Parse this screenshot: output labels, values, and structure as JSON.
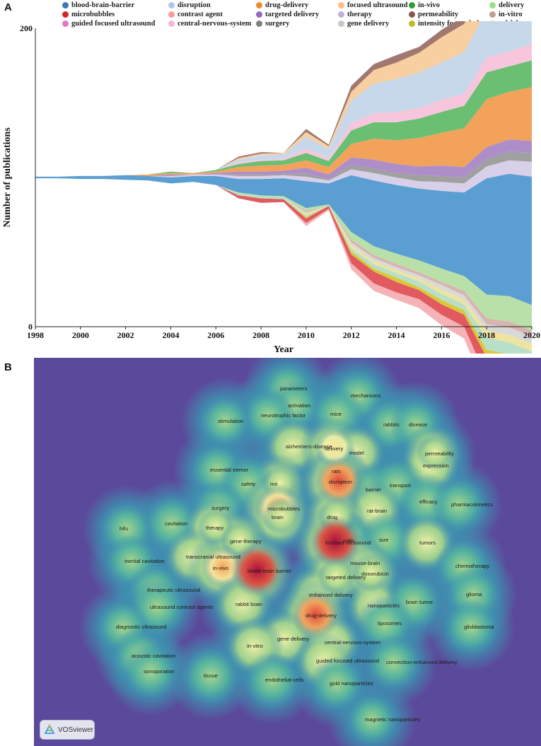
{
  "panels": {
    "a": "A",
    "b": "B"
  },
  "chart_data": [
    {
      "type": "area",
      "subtype": "streamgraph",
      "xlabel": "Year",
      "ylabel": "Number of publications",
      "xlim": [
        1998,
        2020
      ],
      "ylim": [
        0,
        200
      ],
      "y_tick_labels": [
        "200",
        "0"
      ],
      "x": [
        1998,
        1999,
        2000,
        2001,
        2002,
        2003,
        2004,
        2005,
        2006,
        2007,
        2008,
        2009,
        2010,
        2011,
        2012,
        2013,
        2014,
        2015,
        2016,
        2017,
        2018,
        2019,
        2020
      ],
      "x_tick_labels": [
        "1998",
        "2000",
        "2002",
        "2004",
        "2006",
        "2008",
        "2010",
        "2012",
        "2014",
        "2016",
        "2018",
        "2020"
      ],
      "series": [
        {
          "name": "guided focused ultrasound",
          "color": "#f5b3b8",
          "values": [
            0,
            0,
            0,
            0,
            0,
            0,
            0,
            0,
            0,
            0,
            0,
            0,
            2,
            1,
            4,
            5,
            5,
            6,
            7,
            8,
            10,
            10,
            11
          ]
        },
        {
          "name": "contrast agent",
          "color": "#e05a60",
          "values": [
            0,
            0,
            0,
            0,
            0,
            0,
            0,
            0,
            0,
            2,
            3,
            2,
            3,
            2,
            6,
            8,
            7,
            6,
            7,
            8,
            14,
            16,
            16
          ]
        },
        {
          "name": "intensity focused ultrasound",
          "color": "#d9c83a",
          "values": [
            0,
            0,
            0,
            0,
            0,
            0,
            0,
            0,
            0,
            0,
            0,
            0,
            1,
            0,
            2,
            2,
            3,
            2,
            3,
            3,
            5,
            6,
            6
          ]
        },
        {
          "name": "microbubbles",
          "color": "#b8e0c8",
          "values": [
            0,
            0,
            0,
            0,
            0,
            0,
            0,
            0,
            0,
            1,
            1,
            1,
            1,
            0,
            2,
            3,
            3,
            4,
            4,
            4,
            8,
            8,
            8
          ]
        },
        {
          "name": "model",
          "color": "#efe3a0",
          "values": [
            0,
            0,
            0,
            0,
            0,
            0,
            0,
            0,
            0,
            0,
            0,
            0,
            1,
            0,
            2,
            2,
            2,
            2,
            3,
            3,
            5,
            5,
            5
          ]
        },
        {
          "name": "gene delivery",
          "color": "#d9d9d9",
          "values": [
            0,
            0,
            0,
            0,
            0,
            0,
            0,
            0,
            0,
            0,
            0,
            0,
            1,
            0,
            2,
            2,
            2,
            2,
            3,
            3,
            4,
            5,
            5
          ]
        },
        {
          "name": "in-vitro",
          "color": "#d8b4b0",
          "values": [
            0,
            0,
            0,
            0,
            0,
            0,
            0,
            0,
            0,
            0,
            0,
            0,
            1,
            0,
            2,
            2,
            2,
            2,
            2,
            3,
            4,
            4,
            4
          ]
        },
        {
          "name": "delivery",
          "color": "#b8e0a8",
          "values": [
            0,
            0,
            0,
            0,
            0,
            0,
            0,
            0,
            0,
            1,
            1,
            1,
            2,
            1,
            5,
            6,
            7,
            8,
            9,
            10,
            16,
            17,
            17
          ]
        },
        {
          "name": "blood-brain-barrier",
          "color": "#5a9ed2",
          "values": [
            1,
            1,
            2,
            2,
            3,
            3,
            4,
            4,
            6,
            9,
            11,
            12,
            18,
            14,
            38,
            44,
            46,
            48,
            52,
            56,
            78,
            82,
            86
          ]
        },
        {
          "name": "therapy",
          "color": "#d8cfe8",
          "values": [
            0,
            0,
            0,
            0,
            0,
            0,
            1,
            1,
            1,
            2,
            2,
            2,
            3,
            2,
            4,
            5,
            5,
            5,
            6,
            6,
            8,
            9,
            10
          ]
        },
        {
          "name": "surgery",
          "color": "#a0a0a0",
          "values": [
            0,
            0,
            0,
            0,
            0,
            0,
            0,
            0,
            0,
            1,
            1,
            1,
            2,
            1,
            3,
            3,
            3,
            4,
            4,
            4,
            5,
            6,
            6
          ]
        },
        {
          "name": "targeted delivery",
          "color": "#ad8ec8",
          "values": [
            0,
            0,
            0,
            0,
            0,
            0,
            1,
            0,
            1,
            2,
            2,
            2,
            4,
            3,
            5,
            6,
            6,
            6,
            7,
            7,
            8,
            8,
            8
          ]
        },
        {
          "name": "drug-delivery",
          "color": "#f3a25c",
          "values": [
            0,
            0,
            0,
            0,
            0,
            1,
            1,
            1,
            1,
            3,
            4,
            4,
            5,
            5,
            9,
            14,
            16,
            19,
            22,
            26,
            32,
            32,
            36
          ]
        },
        {
          "name": "in-vivo",
          "color": "#6abf72",
          "values": [
            0,
            0,
            0,
            0,
            0,
            0,
            1,
            0,
            1,
            2,
            3,
            3,
            5,
            4,
            9,
            11,
            12,
            13,
            14,
            15,
            18,
            17,
            18
          ]
        },
        {
          "name": "central-nervous-system",
          "color": "#f7c6dc",
          "values": [
            0,
            0,
            0,
            0,
            0,
            0,
            0,
            0,
            0,
            1,
            1,
            1,
            3,
            2,
            5,
            6,
            7,
            7,
            8,
            8,
            10,
            10,
            11
          ]
        },
        {
          "name": "disruption",
          "color": "#c6d8ea",
          "values": [
            0,
            0,
            0,
            0,
            0,
            0,
            0,
            0,
            0,
            2,
            3,
            3,
            8,
            6,
            15,
            20,
            22,
            24,
            25,
            28,
            32,
            30,
            30
          ]
        },
        {
          "name": "focused ultrasound",
          "color": "#f8cfa0",
          "values": [
            0,
            0,
            0,
            0,
            0,
            0,
            0,
            0,
            0,
            1,
            1,
            1,
            3,
            2,
            6,
            9,
            11,
            13,
            17,
            19,
            25,
            28,
            30
          ]
        },
        {
          "name": "permeability",
          "color": "#a07870",
          "values": [
            0,
            0,
            0,
            0,
            0,
            0,
            0,
            0,
            0,
            1,
            1,
            0,
            2,
            1,
            4,
            4,
            5,
            4,
            5,
            5,
            7,
            8,
            8
          ]
        }
      ],
      "legend": [
        {
          "label": "blood-brain-barrier",
          "color": "#3d78b5"
        },
        {
          "label": "disruption",
          "color": "#aec7e8"
        },
        {
          "label": "drug-delivery",
          "color": "#f28a2c"
        },
        {
          "label": "focused ultrasound",
          "color": "#fdbf84"
        },
        {
          "label": "in-vivo",
          "color": "#2ca02c"
        },
        {
          "label": "delivery",
          "color": "#98df8a"
        },
        {
          "label": "microbubbles",
          "color": "#d62728"
        },
        {
          "label": "contrast agent",
          "color": "#ff9896"
        },
        {
          "label": "targeted delivery",
          "color": "#9467bd"
        },
        {
          "label": "therapy",
          "color": "#c5b0d5"
        },
        {
          "label": "permeability",
          "color": "#8c564b"
        },
        {
          "label": "in-vitro",
          "color": "#c49c94"
        },
        {
          "label": "guided focused ultrasound",
          "color": "#e377c2"
        },
        {
          "label": "central-nervous-system",
          "color": "#f7b6d2"
        },
        {
          "label": "surgery",
          "color": "#7f7f7f"
        },
        {
          "label": "gene delivery",
          "color": "#c7c7c7"
        },
        {
          "label": "intensity focused ultrasound",
          "color": "#bcbd22"
        },
        {
          "label": "model",
          "color": "#dbdb8d"
        }
      ]
    },
    {
      "type": "heatmap",
      "subtype": "keyword density map",
      "colormap": [
        "#5b4a9b",
        "#3f8fb0",
        "#56b49f",
        "#a8d68c",
        "#eef0a6",
        "#fbe49a",
        "#f6a05a",
        "#e0463a",
        "#a8103c"
      ],
      "keywords": [
        {
          "label": "parameters",
          "density": 0.3
        },
        {
          "label": "mechanisms",
          "density": 0.3
        },
        {
          "label": "activation",
          "density": 0.3
        },
        {
          "label": "mice",
          "density": 0.35
        },
        {
          "label": "neurotrophic factor",
          "density": 0.3
        },
        {
          "label": "stimulation",
          "density": 0.25
        },
        {
          "label": "rabbits",
          "density": 0.3
        },
        {
          "label": "disease",
          "density": 0.3
        },
        {
          "label": "alzheimers-disease",
          "density": 0.45
        },
        {
          "label": "delivery",
          "density": 0.6
        },
        {
          "label": "model",
          "density": 0.45
        },
        {
          "label": "permeability",
          "density": 0.5
        },
        {
          "label": "expression",
          "density": 0.45
        },
        {
          "label": "essential tremor",
          "density": 0.3
        },
        {
          "label": "rats",
          "density": 0.4
        },
        {
          "label": "mri",
          "density": 0.5
        },
        {
          "label": "disruption",
          "density": 0.85
        },
        {
          "label": "safety",
          "density": 0.4
        },
        {
          "label": "barrier",
          "density": 0.4
        },
        {
          "label": "transport",
          "density": 0.4
        },
        {
          "label": "efficacy",
          "density": 0.4
        },
        {
          "label": "pharmacokinetics",
          "density": 0.35
        },
        {
          "label": "surgery",
          "density": 0.35
        },
        {
          "label": "microbubbles",
          "density": 0.8
        },
        {
          "label": "rat-brain",
          "density": 0.45
        },
        {
          "label": "brain",
          "density": 0.55
        },
        {
          "label": "drug",
          "density": 0.55
        },
        {
          "label": "hifu",
          "density": 0.3
        },
        {
          "label": "cavitation",
          "density": 0.4
        },
        {
          "label": "therapy",
          "density": 0.5
        },
        {
          "label": "gene-therapy",
          "density": 0.55
        },
        {
          "label": "focused ultrasound",
          "density": 0.95
        },
        {
          "label": "cells",
          "density": 0.4
        },
        {
          "label": "size",
          "density": 0.35
        },
        {
          "label": "tumors",
          "density": 0.45
        },
        {
          "label": "inertial cavitation",
          "density": 0.3
        },
        {
          "label": "transcranial ultrasound",
          "density": 0.45
        },
        {
          "label": "in-vivo",
          "density": 0.7
        },
        {
          "label": "blood-brain barrier",
          "density": 1.0
        },
        {
          "label": "mouse-brain",
          "density": 0.45
        },
        {
          "label": "doxorubicin",
          "density": 0.55
        },
        {
          "label": "chemotherapy",
          "density": 0.35
        },
        {
          "label": "therapeutic ultrasound",
          "density": 0.35
        },
        {
          "label": "targeted delivery",
          "density": 0.5
        },
        {
          "label": "glioma",
          "density": 0.35
        },
        {
          "label": "enhanced delivery",
          "density": 0.45
        },
        {
          "label": "ultrasound contrast agents",
          "density": 0.4
        },
        {
          "label": "rabbit brain",
          "density": 0.45
        },
        {
          "label": "nanoparticles",
          "density": 0.45
        },
        {
          "label": "brain tumor",
          "density": 0.4
        },
        {
          "label": "drug-delivery",
          "density": 0.85
        },
        {
          "label": "diagnostic ultrasound",
          "density": 0.3
        },
        {
          "label": "liposomes",
          "density": 0.4
        },
        {
          "label": "glioblastoma",
          "density": 0.35
        },
        {
          "label": "gene delivery",
          "density": 0.45
        },
        {
          "label": "in-vitro",
          "density": 0.45
        },
        {
          "label": "central-nervous-system",
          "density": 0.45
        },
        {
          "label": "acoustic cavitation",
          "density": 0.35
        },
        {
          "label": "guided focused ultrasound",
          "density": 0.45
        },
        {
          "label": "convection-enhanced delivery",
          "density": 0.35
        },
        {
          "label": "sonoporation",
          "density": 0.35
        },
        {
          "label": "tissue",
          "density": 0.4
        },
        {
          "label": "endothelial-cells",
          "density": 0.4
        },
        {
          "label": "gold nanoparticles",
          "density": 0.35
        },
        {
          "label": "magnetic nanoparticles",
          "density": 0.25
        }
      ]
    }
  ],
  "vosviewer": {
    "label": "VOSviewer"
  }
}
